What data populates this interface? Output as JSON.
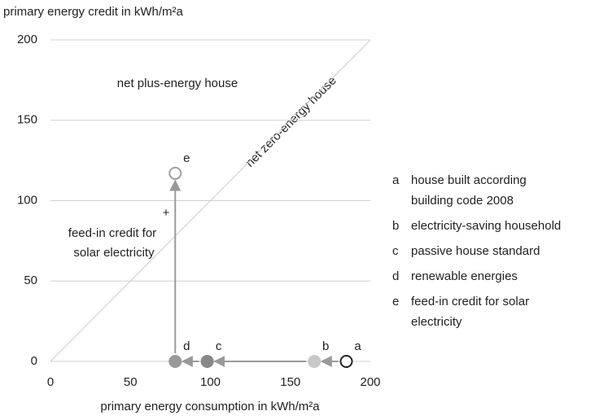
{
  "chart_data": {
    "type": "scatter",
    "y_label": "primary energy credit in kWh/m²a",
    "x_label": "primary energy consumption in kWh/m²a",
    "xlim": [
      0,
      200
    ],
    "ylim": [
      0,
      200
    ],
    "xticks": [
      0,
      50,
      100,
      150,
      200
    ],
    "yticks": [
      0,
      50,
      100,
      150,
      200
    ],
    "grid": true,
    "series": [
      {
        "name": "a",
        "color": "#222222",
        "filled": false,
        "x": [
          185
        ],
        "values": [
          0
        ],
        "description": [
          "house built according",
          "building code 2008"
        ]
      },
      {
        "name": "b",
        "color": "#c8c8c8",
        "filled": true,
        "x": [
          165
        ],
        "values": [
          0
        ],
        "description": [
          "electricity-saving household"
        ]
      },
      {
        "name": "c",
        "color": "#888888",
        "filled": true,
        "x": [
          98
        ],
        "values": [
          0
        ],
        "description": [
          "passive house standard"
        ]
      },
      {
        "name": "d",
        "color": "#999999",
        "filled": true,
        "x": [
          78
        ],
        "values": [
          0
        ],
        "description": [
          "renewable energies"
        ]
      },
      {
        "name": "e",
        "color": "#a0a0a0",
        "filled": false,
        "x": [
          78
        ],
        "values": [
          117
        ],
        "description": [
          "feed-in credit for solar",
          "electricity"
        ]
      }
    ],
    "annotations": {
      "plus_region": "net plus-energy house",
      "zero_line": "net zero-energy house",
      "plus_sign": "+",
      "feed_in": [
        "feed-in credit for",
        "solar electricity"
      ]
    }
  }
}
